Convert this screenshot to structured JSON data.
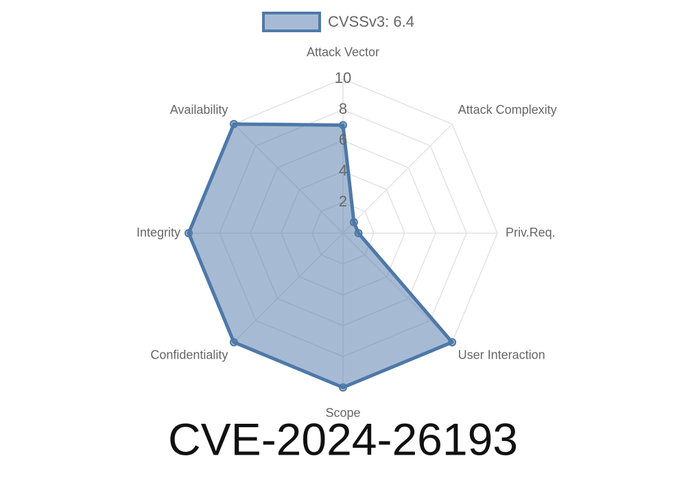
{
  "chart_data": {
    "type": "radar",
    "title": "CVE-2024-26193",
    "categories": [
      "Attack Vector",
      "Attack Complexity",
      "Priv.Req.",
      "User Interaction",
      "Scope",
      "Confidentiality",
      "Integrity",
      "Availability"
    ],
    "series": [
      {
        "name": "CVSSv3: 6.4",
        "color": "#4e78a8",
        "values": [
          7,
          1,
          1,
          10,
          10,
          10,
          10,
          10
        ]
      }
    ],
    "rlim": [
      0,
      10
    ],
    "rticks": [
      2,
      4,
      6,
      8,
      10
    ],
    "grid": true,
    "legend": "top"
  }
}
